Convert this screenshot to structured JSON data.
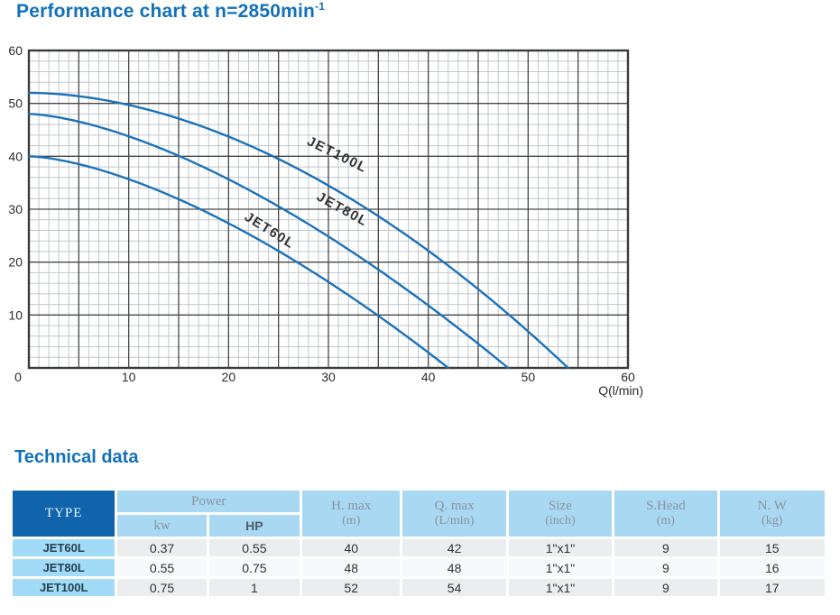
{
  "header": {
    "title_main": "Performance chart at n=2850min",
    "title_sup": "-1"
  },
  "technical_title": "Technical data",
  "chart_data": {
    "type": "line",
    "title": "Performance chart at n=2850min-1",
    "xlabel": "Q(l/min)",
    "ylabel": "",
    "xlim": [
      0,
      60
    ],
    "ylim": [
      0,
      60
    ],
    "x_ticks": [
      0,
      10,
      20,
      30,
      40,
      50,
      60
    ],
    "y_ticks": [
      10,
      20,
      30,
      40,
      50,
      60
    ],
    "grid": {
      "x_major": 5,
      "x_minor": 1,
      "y_major": 10,
      "y_minor": 2,
      "grid_on": true
    },
    "legend_position": "on-curve",
    "series": [
      {
        "name": "JET60L",
        "h_max": 40,
        "q_max": 42,
        "exponent": 1.55,
        "points": [
          [
            0,
            40
          ],
          [
            5,
            38.5
          ],
          [
            10,
            35.7
          ],
          [
            15,
            31.9
          ],
          [
            20,
            27.3
          ],
          [
            25,
            22.1
          ],
          [
            30,
            16.3
          ],
          [
            35,
            9.9
          ],
          [
            40,
            2.9
          ],
          [
            42,
            0
          ]
        ],
        "label": {
          "q": 23.9,
          "h": 25.3,
          "angle": 32
        }
      },
      {
        "name": "JET80L",
        "h_max": 48,
        "q_max": 48,
        "exponent": 1.55,
        "points": [
          [
            0,
            48
          ],
          [
            5,
            46.6
          ],
          [
            10,
            43.8
          ],
          [
            15,
            40.1
          ],
          [
            20,
            35.6
          ],
          [
            25,
            30.5
          ],
          [
            30,
            24.8
          ],
          [
            35,
            18.6
          ],
          [
            40,
            11.8
          ],
          [
            45,
            4.6
          ],
          [
            48,
            0
          ]
        ],
        "label": {
          "q": 31.2,
          "h": 29.3,
          "angle": 29
        }
      },
      {
        "name": "JET100L",
        "h_max": 52,
        "q_max": 54,
        "exponent": 1.85,
        "points": [
          [
            0,
            52
          ],
          [
            5,
            51.4
          ],
          [
            10,
            49.7
          ],
          [
            15,
            47.1
          ],
          [
            20,
            43.7
          ],
          [
            25,
            39.5
          ],
          [
            30,
            34.5
          ],
          [
            35,
            28.7
          ],
          [
            40,
            22.2
          ],
          [
            45,
            14.9
          ],
          [
            50,
            6.9
          ],
          [
            54,
            0
          ]
        ],
        "label": {
          "q": 30.7,
          "h": 39.6,
          "angle": 26
        }
      }
    ],
    "colors": {
      "curve": "#1b72ba",
      "grid_major": "#474747",
      "grid_minor": "#c0c7cd",
      "border": "#3a3a3a",
      "tick_text": "#2b2b2b",
      "curve_label": "#333333"
    }
  },
  "table": {
    "type_header": "TYPE",
    "power_header": "Power",
    "power_units": [
      "kw",
      "HP"
    ],
    "columns": [
      {
        "name": "H. max",
        "unit": "(m)"
      },
      {
        "name": "Q. max",
        "unit": "(L/min)"
      },
      {
        "name": "Size",
        "unit": "(inch)"
      },
      {
        "name": "S.Head",
        "unit": "(m)"
      },
      {
        "name": "N. W",
        "unit": "(kg)"
      }
    ],
    "rows": [
      {
        "type": "JET60L",
        "values": [
          "0.37",
          "0.55",
          "40",
          "42",
          "1\"x1\"",
          "9",
          "15"
        ]
      },
      {
        "type": "JET80L",
        "values": [
          "0.55",
          "0.75",
          "48",
          "48",
          "1\"x1\"",
          "9",
          "16"
        ]
      },
      {
        "type": "JET100L",
        "values": [
          "0.75",
          "1",
          "52",
          "54",
          "1\"x1\"",
          "9",
          "17"
        ]
      }
    ]
  }
}
